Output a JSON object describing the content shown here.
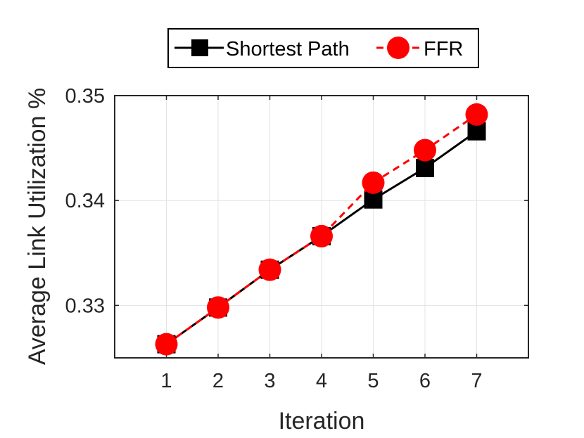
{
  "chart_data": {
    "type": "line",
    "xlabel": "Iteration",
    "ylabel": "Average Link Utilization %",
    "x": [
      1,
      2,
      3,
      4,
      5,
      6,
      7
    ],
    "xlim": [
      0,
      8
    ],
    "ylim": [
      0.325,
      0.35
    ],
    "xticks": [
      "1",
      "2",
      "3",
      "4",
      "5",
      "6",
      "7"
    ],
    "yticks": [
      "0.33",
      "0.34",
      "0.35"
    ],
    "grid": true,
    "legend_position": "top-outside",
    "series": [
      {
        "name": "Shortest Path",
        "values": [
          0.3263,
          0.3298,
          0.3334,
          0.3366,
          0.3401,
          0.3431,
          0.3466
        ],
        "color": "#000000",
        "marker": "square",
        "linestyle": "solid"
      },
      {
        "name": "FFR",
        "values": [
          0.3263,
          0.3298,
          0.3334,
          0.3366,
          0.3417,
          0.3448,
          0.3482
        ],
        "color": "#ff0000",
        "marker": "circle",
        "linestyle": "dashed"
      }
    ]
  }
}
